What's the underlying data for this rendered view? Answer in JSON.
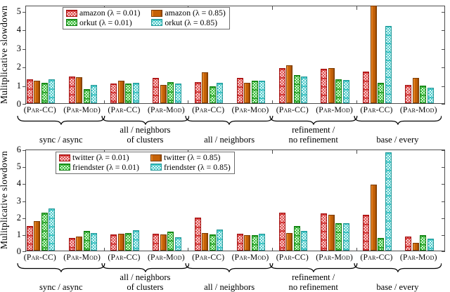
{
  "figure_title": "",
  "colors": {
    "red": "#c41616",
    "orange": "#c56208",
    "green": "#2f9e2f",
    "cyan": "#35bcbc",
    "axis": "#4d4d4d"
  },
  "chart_data": [
    {
      "type": "bar",
      "title": "",
      "ylabel": "Mulitplicative slowdown",
      "ylim": [
        0,
        5.3
      ],
      "yticks": [
        0,
        1,
        2,
        3,
        4,
        5
      ],
      "grid": false,
      "legend_position": "top-left-inside",
      "categories": [
        "(Par-CC)",
        "(Par-Mod)",
        "(Par-CC)",
        "(Par-Mod)",
        "(Par-CC)",
        "(Par-Mod)",
        "(Par-CC)",
        "(Par-Mod)",
        "(Par-CC)",
        "(Par-Mod)"
      ],
      "groups": [
        {
          "label_lines": [
            "sync / async"
          ]
        },
        {
          "label_lines": [
            "all / neighbors",
            "of clusters"
          ]
        },
        {
          "label_lines": [
            "all / neighbors"
          ]
        },
        {
          "label_lines": [
            "refinement /",
            "no refinement"
          ]
        },
        {
          "label_lines": [
            "base / every"
          ]
        }
      ],
      "series": [
        {
          "name": "amazon (λ = 0.01)",
          "color_key": "red",
          "values": [
            1.3,
            1.45,
            1.05,
            1.35,
            1.15,
            1.35,
            1.9,
            1.85,
            1.7,
            1.0
          ]
        },
        {
          "name": "amazon (λ = 0.85)",
          "color_key": "orange",
          "values": [
            1.2,
            1.4,
            1.2,
            1.0,
            1.65,
            1.1,
            2.05,
            1.9,
            5.25,
            1.35
          ]
        },
        {
          "name": "orkut (λ = 0.01)",
          "color_key": "green",
          "values": [
            1.1,
            0.75,
            1.05,
            1.15,
            0.9,
            1.2,
            1.5,
            1.3,
            1.1,
            0.95
          ]
        },
        {
          "name": "orkut (λ = 0.85)",
          "color_key": "cyan",
          "values": [
            1.3,
            1.0,
            1.1,
            1.05,
            1.1,
            1.2,
            1.45,
            1.25,
            4.15,
            0.85
          ]
        }
      ]
    },
    {
      "type": "bar",
      "title": "",
      "ylabel": "Mulitplicative slowdown",
      "ylim": [
        0,
        6
      ],
      "yticks": [
        0,
        1,
        2,
        3,
        4,
        5,
        6
      ],
      "grid": false,
      "legend_position": "top-left-inside",
      "categories": [
        "(Par-CC)",
        "(Par-Mod)",
        "(Par-CC)",
        "(Par-Mod)",
        "(Par-CC)",
        "(Par-Mod)",
        "(Par-CC)",
        "(Par-Mod)",
        "(Par-CC)",
        "(Par-Mod)"
      ],
      "groups": [
        {
          "label_lines": [
            "sync / async"
          ]
        },
        {
          "label_lines": [
            "all / neighbors",
            "of clusters"
          ]
        },
        {
          "label_lines": [
            "all / neighbors"
          ]
        },
        {
          "label_lines": [
            "refinement /",
            "no refinement"
          ]
        },
        {
          "label_lines": [
            "base / every"
          ]
        }
      ],
      "series": [
        {
          "name": "twitter (λ = 0.01)",
          "color_key": "red",
          "values": [
            1.45,
            0.75,
            0.95,
            1.0,
            1.95,
            1.0,
            2.25,
            2.2,
            2.1,
            0.85
          ]
        },
        {
          "name": "twitter (λ = 0.85)",
          "color_key": "orange",
          "values": [
            1.75,
            0.85,
            1.0,
            0.95,
            1.05,
            0.9,
            1.05,
            2.1,
            3.9,
            0.45
          ]
        },
        {
          "name": "friendster (λ = 0.01)",
          "color_key": "green",
          "values": [
            2.25,
            1.15,
            1.05,
            1.1,
            0.95,
            0.9,
            1.45,
            1.6,
            0.75,
            0.9
          ]
        },
        {
          "name": "friendster (λ = 0.85)",
          "color_key": "cyan",
          "values": [
            2.5,
            1.05,
            1.2,
            0.8,
            1.25,
            1.0,
            1.15,
            1.6,
            5.8,
            0.7
          ]
        }
      ]
    }
  ]
}
